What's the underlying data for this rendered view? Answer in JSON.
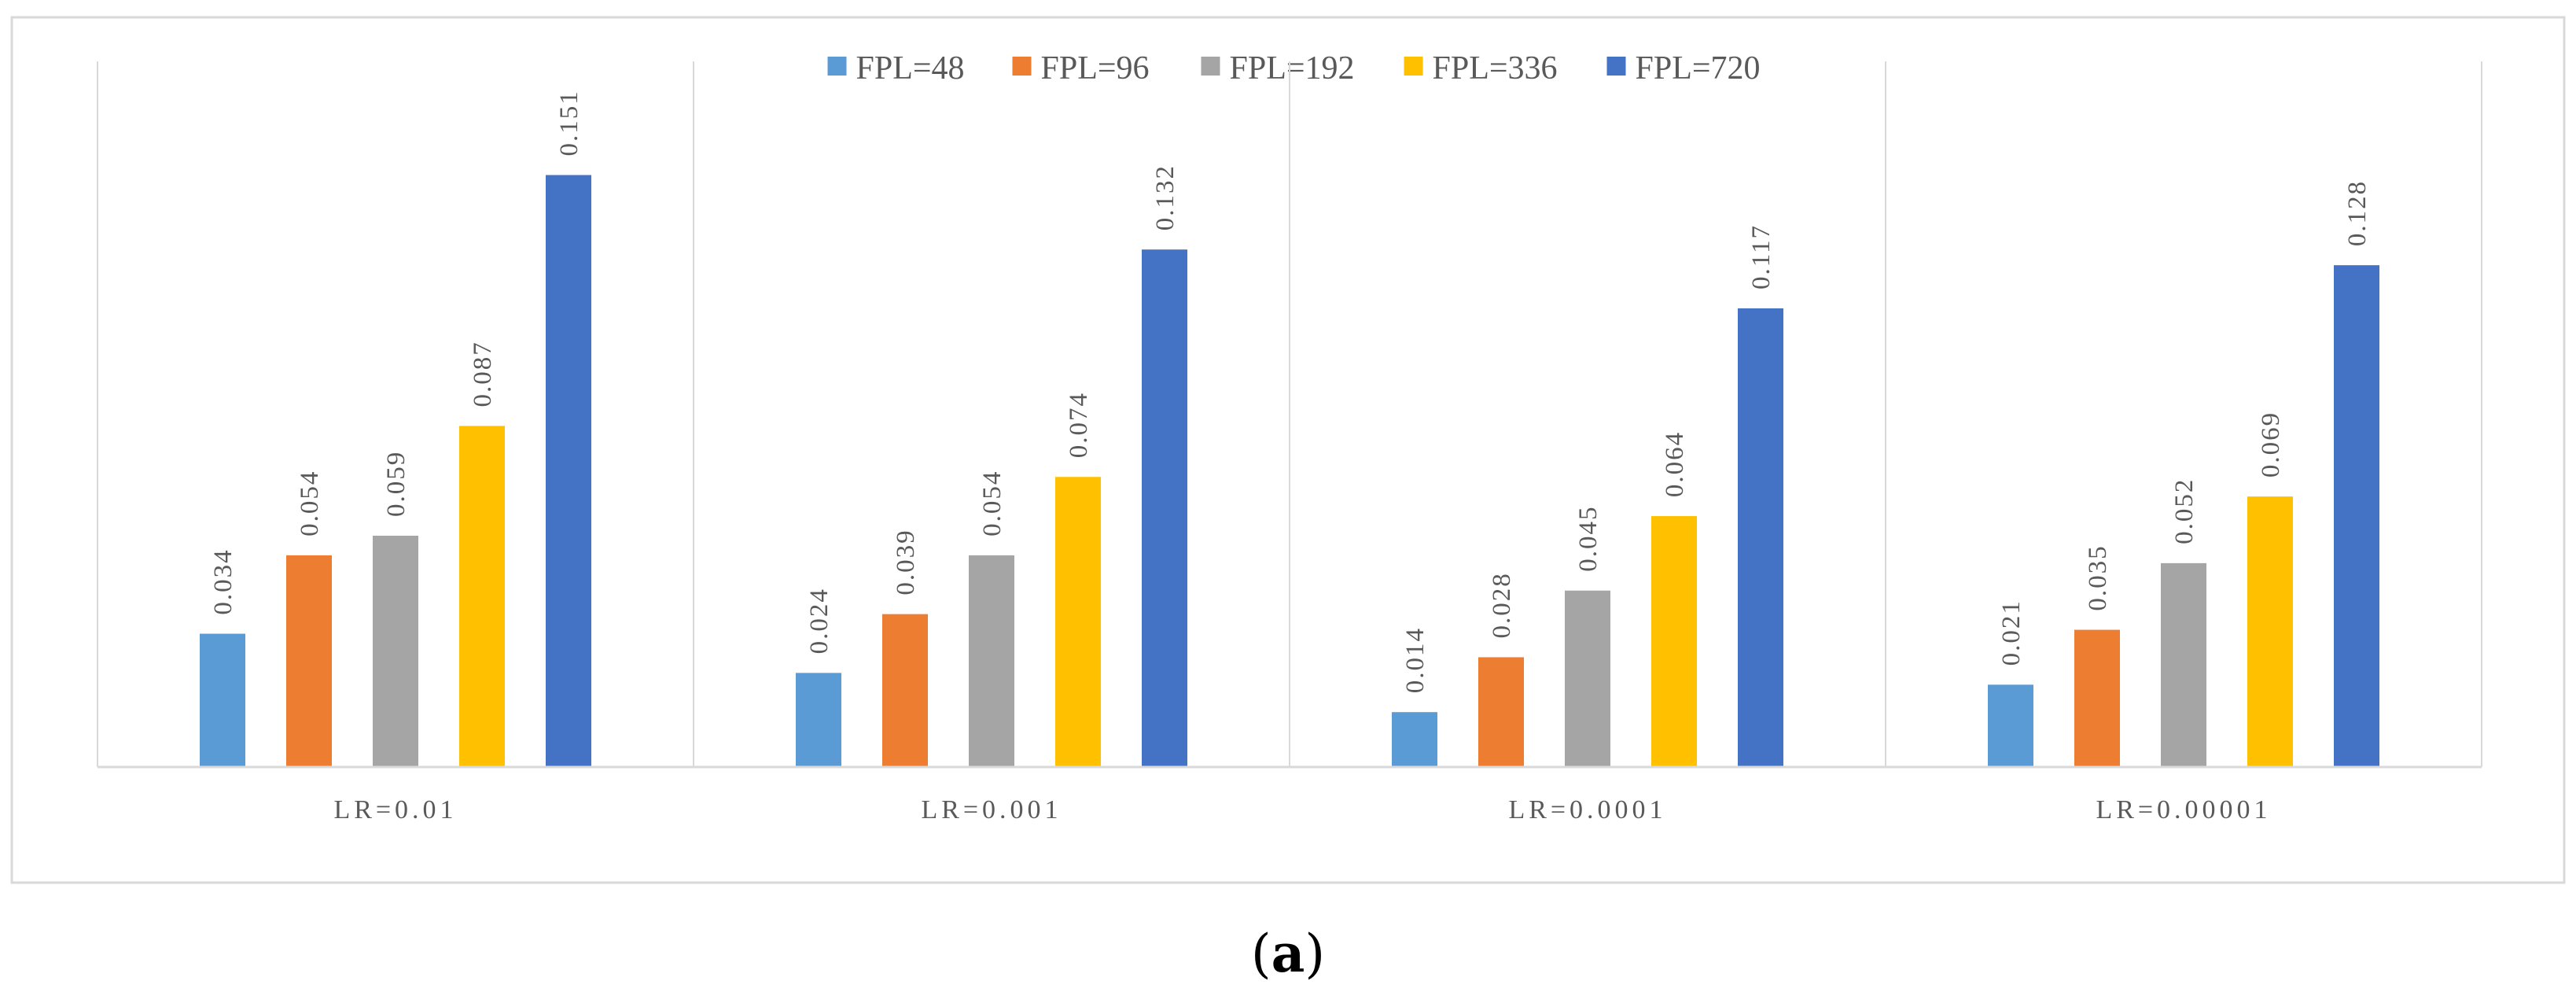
{
  "chart_data": {
    "type": "bar",
    "title": "",
    "xlabel": "",
    "ylabel": "",
    "ylim": [
      0,
      0.18
    ],
    "grid": false,
    "legend_position": "top-center",
    "categories": [
      "LR=0.01",
      "LR=0.001",
      "LR=0.0001",
      "LR=0.00001"
    ],
    "series": [
      {
        "name": "FPL=48",
        "color": "#5B9BD5",
        "values": [
          0.034,
          0.024,
          0.014,
          0.021
        ]
      },
      {
        "name": "FPL=96",
        "color": "#ED7D31",
        "values": [
          0.054,
          0.039,
          0.028,
          0.035
        ]
      },
      {
        "name": "FPL=192",
        "color": "#A5A5A5",
        "values": [
          0.059,
          0.054,
          0.045,
          0.052
        ]
      },
      {
        "name": "FPL=336",
        "color": "#FFC000",
        "values": [
          0.087,
          0.074,
          0.064,
          0.069
        ]
      },
      {
        "name": "FPL=720",
        "color": "#4472C4",
        "values": [
          0.151,
          0.132,
          0.117,
          0.128
        ]
      }
    ]
  },
  "caption": {
    "open": "(",
    "letter": "a",
    "close": ")"
  }
}
